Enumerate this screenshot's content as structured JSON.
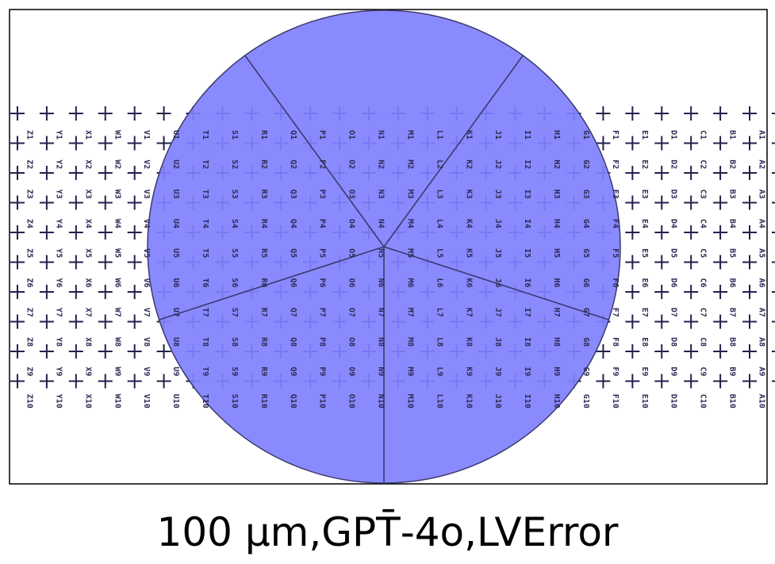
{
  "caption": "100 μm,GPT̄-4o,LVError",
  "columns": [
    "Z",
    "Y",
    "X",
    "W",
    "V",
    "U",
    "T",
    "S",
    "R",
    "Q",
    "P",
    "O",
    "N",
    "M",
    "L",
    "K",
    "J",
    "I",
    "H",
    "G",
    "F",
    "E",
    "D",
    "C",
    "B",
    "A"
  ],
  "rows": [
    1,
    2,
    3,
    4,
    5,
    6,
    7,
    8,
    9,
    10
  ],
  "circle_segments": 5,
  "colors": {
    "circle_fill": "#8080ff",
    "circle_edge": "#3a3a6e",
    "marker": "#22224d",
    "label": "#2b2b55",
    "frame": "#000000"
  },
  "icons": {
    "marker": "plus-cross"
  }
}
